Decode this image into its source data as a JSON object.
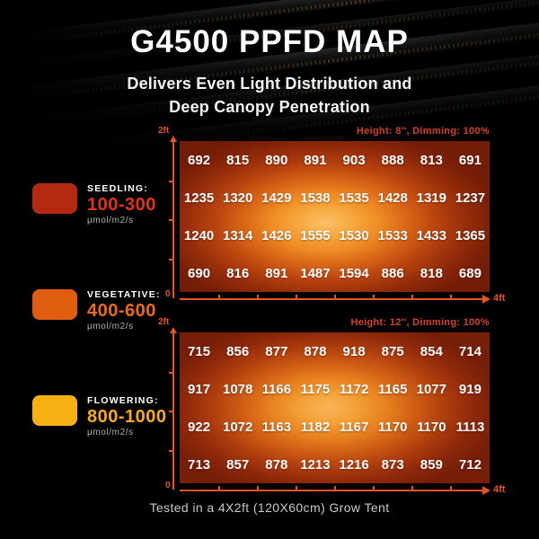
{
  "hero": {
    "title": "G4500 PPFD MAP",
    "subtitle_line1": "Delivers Even Light Distribution and",
    "subtitle_line2": "Deep Canopy Penetration"
  },
  "legend": {
    "items": [
      {
        "label": "SEEDLING:",
        "range": "100-300",
        "unit": "μmol/m2/s",
        "swatch_color": "#b22a12",
        "range_color": "#e5301a"
      },
      {
        "label": "VEGETATIVE:",
        "range": "400-600",
        "unit": "μmol/m2/s",
        "swatch_color": "#e05c0f",
        "range_color": "#ec6c15"
      },
      {
        "label": "FLOWERING:",
        "range": "800-1000",
        "unit": "μmol/m2/s",
        "swatch_color": "#f8b113",
        "range_color": "#f8ab15"
      }
    ]
  },
  "chart_data": [
    {
      "type": "heatmap",
      "title": "Height: 8'', Dimming: 100%",
      "x_axis": {
        "start_label": "0",
        "end_label": "4ft"
      },
      "y_axis": {
        "end_label": "2ft"
      },
      "unit": "μmol/m2/s",
      "values": [
        [
          692,
          815,
          890,
          891,
          903,
          888,
          813,
          691
        ],
        [
          1235,
          1320,
          1429,
          1538,
          1535,
          1428,
          1319,
          1237
        ],
        [
          1240,
          1314,
          1426,
          1555,
          1530,
          1533,
          1433,
          1365
        ],
        [
          690,
          816,
          891,
          1487,
          1594,
          886,
          818,
          689
        ]
      ]
    },
    {
      "type": "heatmap",
      "title": "Height: 12'', Dimming: 100%",
      "x_axis": {
        "start_label": "0",
        "end_label": "4ft"
      },
      "y_axis": {
        "end_label": "2ft"
      },
      "unit": "μmol/m2/s",
      "values": [
        [
          715,
          856,
          877,
          878,
          918,
          875,
          854,
          714
        ],
        [
          917,
          1078,
          1166,
          1175,
          1172,
          1165,
          1077,
          919
        ],
        [
          922,
          1072,
          1163,
          1182,
          1167,
          1170,
          1170,
          1113
        ],
        [
          713,
          857,
          878,
          1213,
          1216,
          873,
          859,
          712
        ]
      ]
    }
  ],
  "caption": "Tested in a 4X2ft (120X60cm) Grow Tent",
  "colors": {
    "axis_accent": "#e8521c",
    "chart_header_text": "#d64024",
    "heatmap_center": "#f9b459",
    "heatmap_edge": "#731d06",
    "caption_text": "#cbc9c6"
  }
}
